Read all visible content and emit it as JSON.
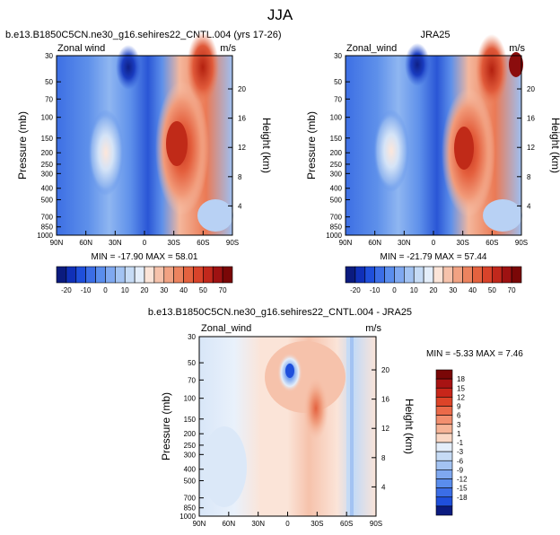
{
  "figure_title": "JJA",
  "chart_data": [
    {
      "type": "heatmap",
      "title": "b.e13.B1850C5CN.ne30_g16.sehires22_CNTL.004 (yrs 17-26)",
      "variable": "Zonal wind",
      "units": "m/s",
      "x_ticks": [
        "90N",
        "60N",
        "30N",
        "0",
        "30S",
        "60S",
        "90S"
      ],
      "y_ticks": [
        "30",
        "50",
        "70",
        "100",
        "150",
        "200",
        "250",
        "300",
        "400",
        "500",
        "700",
        "850",
        "1000"
      ],
      "ylabel": "Pressure (mb)",
      "y2label": "Height (km)",
      "y2_ticks": [
        "20",
        "16",
        "12",
        "8",
        "4"
      ],
      "min": -17.9,
      "max": 58.01,
      "stats_label": "MIN = -17.90   MAX = 58.01"
    },
    {
      "type": "heatmap",
      "title": "JRA25",
      "variable": "Zonal_wind",
      "units": "m/s",
      "x_ticks": [
        "90N",
        "60N",
        "30N",
        "0",
        "30S",
        "60S",
        "90S"
      ],
      "y_ticks": [
        "30",
        "50",
        "70",
        "100",
        "150",
        "200",
        "250",
        "300",
        "400",
        "500",
        "700",
        "850",
        "1000"
      ],
      "ylabel": "Pressure (mb)",
      "y2label": "Height (km)",
      "y2_ticks": [
        "20",
        "16",
        "12",
        "8",
        "4"
      ],
      "min": -21.79,
      "max": 57.44,
      "stats_label": "MIN = -21.79   MAX = 57.44"
    },
    {
      "type": "heatmap",
      "title": "b.e13.B1850C5CN.ne30_g16.sehires22_CNTL.004 - JRA25",
      "variable": "Zonal_wind",
      "units": "m/s",
      "x_ticks": [
        "90N",
        "60N",
        "30N",
        "0",
        "30S",
        "60S",
        "90S"
      ],
      "y_ticks": [
        "30",
        "50",
        "70",
        "100",
        "150",
        "200",
        "250",
        "300",
        "400",
        "500",
        "700",
        "850",
        "1000"
      ],
      "ylabel": "Pressure (mb)",
      "y2label": "Height (km)",
      "y2_ticks": [
        "20",
        "16",
        "12",
        "8",
        "4"
      ],
      "min": -5.33,
      "max": 7.46,
      "stats_label": "MIN =  -5.33   MAX =   7.46"
    }
  ],
  "colorbar_top": {
    "labels": [
      "-20",
      "-10",
      "0",
      "10",
      "20",
      "30",
      "40",
      "50",
      "70"
    ],
    "colors": [
      "#0b1b7f",
      "#1030b8",
      "#1f4fdb",
      "#3b6de6",
      "#5a8ded",
      "#7fa8f0",
      "#a3c3f2",
      "#c6dbf5",
      "#e4eefa",
      "#fbe4d8",
      "#f6c2ab",
      "#f1a283",
      "#ec835f",
      "#e4623f",
      "#d8432a",
      "#c1281c",
      "#9e1212",
      "#7a0707"
    ]
  },
  "colorbar_diff": {
    "labels": [
      "18",
      "15",
      "12",
      "9",
      "6",
      "3",
      "1",
      "-1",
      "-3",
      "-6",
      "-9",
      "-12",
      "-15",
      "-18"
    ],
    "colors": [
      "#7a0707",
      "#a81313",
      "#c8261a",
      "#dd4428",
      "#eb6a49",
      "#f28f6f",
      "#f6b497",
      "#fad8c5",
      "#e4eefa",
      "#c6dbf5",
      "#a3c3f2",
      "#7fa8f0",
      "#5a8ded",
      "#3b6de6",
      "#1f4fdb",
      "#0b1b7f"
    ]
  }
}
